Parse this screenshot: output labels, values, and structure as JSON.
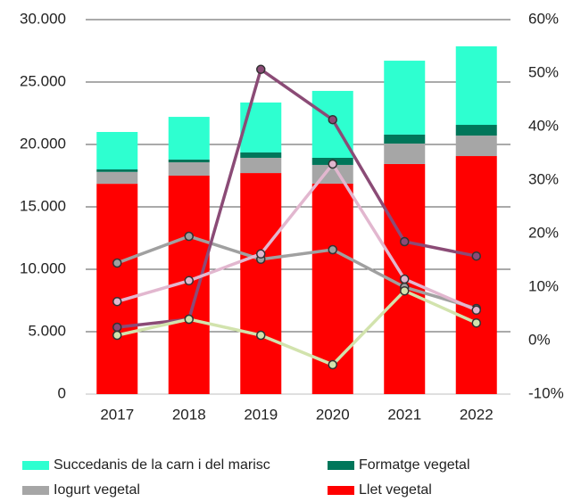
{
  "chart_data": {
    "type": "bar",
    "stacked": true,
    "categories": [
      "2017",
      "2018",
      "2019",
      "2020",
      "2021",
      "2022"
    ],
    "ylim": [
      0,
      30000
    ],
    "yticks": [
      0,
      {
        "value": 5000,
        "label": "5.000"
      },
      {
        "value": 10000,
        "label": "10.000"
      },
      {
        "value": 15000,
        "label": "15.000"
      },
      {
        "value": 20000,
        "label": "20.000"
      },
      {
        "value": 25000,
        "label": "25.000"
      },
      {
        "value": 30000,
        "label": "30.000"
      }
    ],
    "y2lim": [
      -10,
      60
    ],
    "y2ticks": [
      {
        "value": -10,
        "label": "-10%"
      },
      {
        "value": 0,
        "label": "0%"
      },
      {
        "value": 10,
        "label": "10%"
      },
      {
        "value": 20,
        "label": "20%"
      },
      {
        "value": 30,
        "label": "30%"
      },
      {
        "value": 40,
        "label": "40%"
      },
      {
        "value": 50,
        "label": "50%"
      },
      {
        "value": 60,
        "label": "60%"
      }
    ],
    "grid": true,
    "legend": "bottom",
    "series": [
      {
        "name": "Llet vegetal",
        "color": "#ff0000",
        "values": [
          16850,
          17500,
          17710,
          16860,
          18430,
          19070
        ]
      },
      {
        "name": "Iogurt vegetal",
        "color": "#a6a6a6",
        "values": [
          950,
          1070,
          1220,
          1500,
          1640,
          1640
        ]
      },
      {
        "name": "Formatge vegetal",
        "color": "#00765a",
        "values": [
          200,
          220,
          430,
          570,
          720,
          860
        ]
      },
      {
        "name": "Succedanis de la carn i del marisc",
        "color": "#2effd0",
        "values": [
          3000,
          3420,
          4000,
          5360,
          5920,
          6290
        ]
      },
      {
        "type": "line",
        "axis": "y2",
        "color": "#a0a0a0",
        "values": [
          14.5,
          19.5,
          15.2,
          17.0,
          10.0,
          6.0
        ]
      },
      {
        "type": "line",
        "axis": "y2",
        "color": "#8b4b76",
        "values": [
          2.5,
          4.0,
          50.7,
          41.3,
          18.5,
          15.8
        ]
      },
      {
        "type": "line",
        "axis": "y2",
        "color": "#e2b7cf",
        "values": [
          7.3,
          11.2,
          16.2,
          33.0,
          11.5,
          5.7
        ]
      },
      {
        "type": "line",
        "axis": "y2",
        "color": "#d2e3ad",
        "values": [
          1.0,
          4.0,
          1.0,
          -4.5,
          9.3,
          3.3
        ]
      }
    ],
    "legend_order": [
      3,
      2,
      1,
      0
    ]
  }
}
